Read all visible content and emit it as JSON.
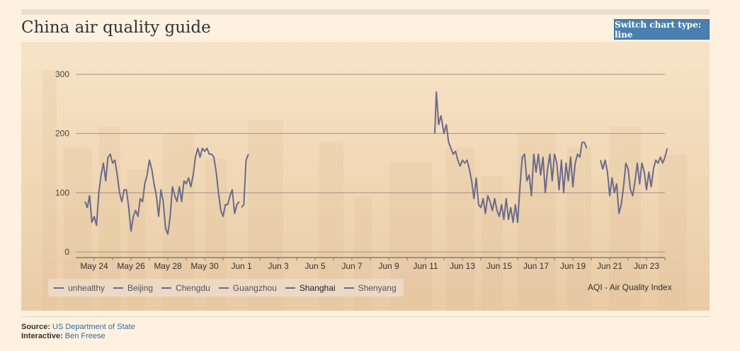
{
  "header": {
    "title": "China air quality guide",
    "switch_button_label": "Switch chart type: line"
  },
  "chart_data": {
    "type": "line",
    "title": "China air quality guide",
    "ylabel": "",
    "xlabel": "",
    "ylim": [
      0,
      300
    ],
    "yticks": [
      0,
      100,
      200,
      300
    ],
    "xticks": [
      "May 24",
      "May 26",
      "May 28",
      "May 30",
      "Jun 1",
      "Jun 3",
      "Jun 5",
      "Jun 7",
      "Jun 9",
      "Jun 11",
      "Jun 13",
      "Jun 15",
      "Jun 17",
      "Jun 19",
      "Jun 21",
      "Jun 23"
    ],
    "grid": true,
    "legend_position": "bottom-left",
    "annotation": "AQI - Air Quality Index",
    "legend": [
      "unhealthy",
      "Beijing",
      "Chengdu",
      "Guangzhou",
      "Shanghai",
      "Shenyang"
    ],
    "active_series": "Shanghai",
    "line_color": "#6a6a8a",
    "series": [
      {
        "name": "Shanghai",
        "segments": [
          [
            [
              "2013-05-23T12:00",
              85
            ],
            [
              "2013-05-23T15:00",
              75
            ],
            [
              "2013-05-23T18:00",
              95
            ],
            [
              "2013-05-23T21:00",
              50
            ],
            [
              "2013-05-24T00:00",
              60
            ],
            [
              "2013-05-24T03:00",
              45
            ],
            [
              "2013-05-24T06:00",
              100
            ],
            [
              "2013-05-24T09:00",
              130
            ],
            [
              "2013-05-24T12:00",
              150
            ],
            [
              "2013-05-24T15:00",
              120
            ],
            [
              "2013-05-24T18:00",
              160
            ],
            [
              "2013-05-24T21:00",
              165
            ],
            [
              "2013-05-25T00:00",
              150
            ],
            [
              "2013-05-25T03:00",
              155
            ],
            [
              "2013-05-25T06:00",
              130
            ],
            [
              "2013-05-25T09:00",
              100
            ],
            [
              "2013-05-25T12:00",
              85
            ],
            [
              "2013-05-25T15:00",
              105
            ],
            [
              "2013-05-25T18:00",
              105
            ],
            [
              "2013-05-25T21:00",
              75
            ],
            [
              "2013-05-26T00:00",
              35
            ],
            [
              "2013-05-26T03:00",
              60
            ],
            [
              "2013-05-26T06:00",
              70
            ],
            [
              "2013-05-26T09:00",
              60
            ],
            [
              "2013-05-26T12:00",
              90
            ],
            [
              "2013-05-26T15:00",
              85
            ],
            [
              "2013-05-26T18:00",
              115
            ],
            [
              "2013-05-26T21:00",
              130
            ],
            [
              "2013-05-27T00:00",
              155
            ],
            [
              "2013-05-27T03:00",
              140
            ],
            [
              "2013-05-27T06:00",
              115
            ],
            [
              "2013-05-27T09:00",
              95
            ],
            [
              "2013-05-27T12:00",
              60
            ],
            [
              "2013-05-27T15:00",
              105
            ],
            [
              "2013-05-27T18:00",
              85
            ],
            [
              "2013-05-27T21:00",
              40
            ],
            [
              "2013-05-28T00:00",
              30
            ],
            [
              "2013-05-28T03:00",
              60
            ],
            [
              "2013-05-28T06:00",
              110
            ],
            [
              "2013-05-28T09:00",
              95
            ],
            [
              "2013-05-28T12:00",
              85
            ],
            [
              "2013-05-28T15:00",
              110
            ],
            [
              "2013-05-28T18:00",
              85
            ],
            [
              "2013-05-28T21:00",
              120
            ],
            [
              "2013-05-29T00:00",
              115
            ],
            [
              "2013-05-29T03:00",
              125
            ],
            [
              "2013-05-29T06:00",
              110
            ],
            [
              "2013-05-29T09:00",
              130
            ],
            [
              "2013-05-29T12:00",
              160
            ],
            [
              "2013-05-29T15:00",
              175
            ],
            [
              "2013-05-29T18:00",
              160
            ],
            [
              "2013-05-29T21:00",
              175
            ],
            [
              "2013-05-30T00:00",
              170
            ],
            [
              "2013-05-30T03:00",
              175
            ],
            [
              "2013-05-30T06:00",
              165
            ],
            [
              "2013-05-30T09:00",
              165
            ],
            [
              "2013-05-30T12:00",
              160
            ],
            [
              "2013-05-30T15:00",
              135
            ],
            [
              "2013-05-30T18:00",
              100
            ],
            [
              "2013-05-30T21:00",
              70
            ],
            [
              "2013-05-31T00:00",
              60
            ],
            [
              "2013-05-31T03:00",
              80
            ],
            [
              "2013-05-31T06:00",
              80
            ],
            [
              "2013-05-31T09:00",
              95
            ],
            [
              "2013-05-31T12:00",
              105
            ],
            [
              "2013-05-31T15:00",
              65
            ],
            [
              "2013-05-31T18:00",
              80
            ],
            [
              "2013-05-31T21:00",
              85
            ]
          ],
          [
            [
              "2013-06-01T00:00",
              75
            ],
            [
              "2013-06-01T03:00",
              80
            ],
            [
              "2013-06-01T06:00",
              155
            ],
            [
              "2013-06-01T09:00",
              165
            ]
          ],
          [
            [
              "2013-06-11T12:00",
              200
            ],
            [
              "2013-06-11T14:00",
              270
            ],
            [
              "2013-06-11T17:00",
              215
            ],
            [
              "2013-06-11T20:00",
              230
            ],
            [
              "2013-06-12T00:00",
              200
            ],
            [
              "2013-06-12T03:00",
              215
            ],
            [
              "2013-06-12T06:00",
              185
            ],
            [
              "2013-06-12T09:00",
              175
            ],
            [
              "2013-06-12T12:00",
              165
            ],
            [
              "2013-06-12T15:00",
              170
            ],
            [
              "2013-06-12T18:00",
              155
            ],
            [
              "2013-06-12T21:00",
              145
            ],
            [
              "2013-06-13T00:00",
              155
            ],
            [
              "2013-06-13T03:00",
              150
            ],
            [
              "2013-06-13T06:00",
              155
            ],
            [
              "2013-06-13T09:00",
              140
            ],
            [
              "2013-06-13T12:00",
              120
            ],
            [
              "2013-06-13T15:00",
              90
            ],
            [
              "2013-06-13T18:00",
              125
            ],
            [
              "2013-06-13T21:00",
              80
            ],
            [
              "2013-06-14T00:00",
              75
            ],
            [
              "2013-06-14T03:00",
              90
            ],
            [
              "2013-06-14T06:00",
              65
            ],
            [
              "2013-06-14T09:00",
              95
            ],
            [
              "2013-06-14T12:00",
              85
            ],
            [
              "2013-06-14T15:00",
              70
            ],
            [
              "2013-06-14T18:00",
              90
            ],
            [
              "2013-06-14T21:00",
              70
            ],
            [
              "2013-06-15T00:00",
              60
            ],
            [
              "2013-06-15T03:00",
              80
            ],
            [
              "2013-06-15T06:00",
              55
            ],
            [
              "2013-06-15T09:00",
              90
            ],
            [
              "2013-06-15T12:00",
              55
            ],
            [
              "2013-06-15T15:00",
              75
            ],
            [
              "2013-06-15T18:00",
              50
            ],
            [
              "2013-06-15T21:00",
              80
            ],
            [
              "2013-06-16T00:00",
              50
            ],
            [
              "2013-06-16T03:00",
              110
            ],
            [
              "2013-06-16T06:00",
              160
            ],
            [
              "2013-06-16T09:00",
              165
            ],
            [
              "2013-06-16T12:00",
              120
            ],
            [
              "2013-06-16T15:00",
              130
            ],
            [
              "2013-06-16T18:00",
              95
            ],
            [
              "2013-06-16T21:00",
              165
            ],
            [
              "2013-06-17T00:00",
              135
            ],
            [
              "2013-06-17T03:00",
              165
            ],
            [
              "2013-06-17T06:00",
              130
            ],
            [
              "2013-06-17T09:00",
              160
            ],
            [
              "2013-06-17T12:00",
              100
            ],
            [
              "2013-06-17T15:00",
              140
            ],
            [
              "2013-06-17T18:00",
              165
            ],
            [
              "2013-06-17T21:00",
              120
            ],
            [
              "2013-06-18T00:00",
              165
            ],
            [
              "2013-06-18T03:00",
              150
            ],
            [
              "2013-06-18T06:00",
              105
            ],
            [
              "2013-06-18T09:00",
              155
            ],
            [
              "2013-06-18T12:00",
              100
            ],
            [
              "2013-06-18T15:00",
              150
            ],
            [
              "2013-06-18T18:00",
              120
            ],
            [
              "2013-06-18T21:00",
              160
            ],
            [
              "2013-06-19T00:00",
              110
            ],
            [
              "2013-06-19T03:00",
              150
            ],
            [
              "2013-06-19T06:00",
              165
            ],
            [
              "2013-06-19T09:00",
              160
            ],
            [
              "2013-06-19T12:00",
              185
            ],
            [
              "2013-06-19T15:00",
              185
            ],
            [
              "2013-06-19T18:00",
              175
            ]
          ],
          [
            [
              "2013-06-20T12:00",
              155
            ],
            [
              "2013-06-20T15:00",
              140
            ],
            [
              "2013-06-20T18:00",
              155
            ],
            [
              "2013-06-20T21:00",
              135
            ],
            [
              "2013-06-21T00:00",
              95
            ],
            [
              "2013-06-21T03:00",
              125
            ],
            [
              "2013-06-21T06:00",
              100
            ],
            [
              "2013-06-21T09:00",
              115
            ],
            [
              "2013-06-21T12:00",
              65
            ],
            [
              "2013-06-21T15:00",
              80
            ],
            [
              "2013-06-21T18:00",
              110
            ],
            [
              "2013-06-21T21:00",
              150
            ],
            [
              "2013-06-22T00:00",
              140
            ],
            [
              "2013-06-22T03:00",
              105
            ],
            [
              "2013-06-22T06:00",
              95
            ],
            [
              "2013-06-22T09:00",
              120
            ],
            [
              "2013-06-22T12:00",
              150
            ],
            [
              "2013-06-22T15:00",
              115
            ],
            [
              "2013-06-22T18:00",
              150
            ],
            [
              "2013-06-22T21:00",
              135
            ],
            [
              "2013-06-23T00:00",
              105
            ],
            [
              "2013-06-23T03:00",
              135
            ],
            [
              "2013-06-23T06:00",
              110
            ],
            [
              "2013-06-23T09:00",
              140
            ],
            [
              "2013-06-23T12:00",
              155
            ],
            [
              "2013-06-23T15:00",
              150
            ],
            [
              "2013-06-23T18:00",
              160
            ],
            [
              "2013-06-23T21:00",
              150
            ],
            [
              "2013-06-24T00:00",
              160
            ],
            [
              "2013-06-24T03:00",
              175
            ]
          ]
        ]
      }
    ]
  },
  "footer": {
    "source_label": "Source:",
    "source_value": "US Department of State",
    "interactive_label": "Interactive:",
    "interactive_value": "Ben Freese"
  }
}
